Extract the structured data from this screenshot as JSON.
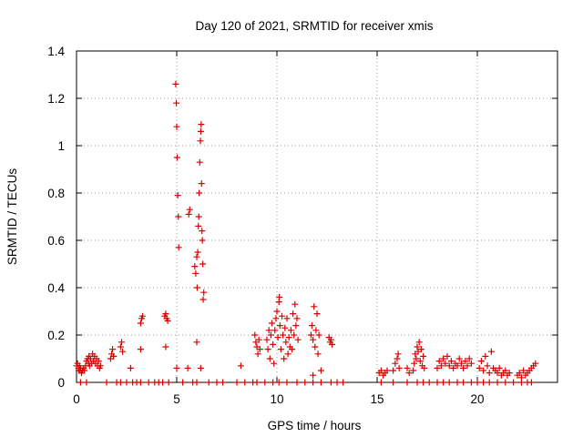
{
  "chart_data": {
    "type": "scatter",
    "title": "Day 120 of 2021, SRMTID for receiver xmis",
    "xlabel": "GPS time / hours",
    "ylabel": "SRMTID / TECUs",
    "xlim": [
      0,
      24
    ],
    "ylim": [
      0,
      1.4
    ],
    "xticks": [
      0,
      5,
      10,
      15,
      20
    ],
    "xtick_labels": [
      "0",
      "5",
      "10",
      "15",
      "20"
    ],
    "yticks": [
      0,
      0.2,
      0.4,
      0.6,
      0.8,
      1.0,
      1.2,
      1.4
    ],
    "ytick_labels": [
      "0",
      "0.2",
      "0.4",
      "0.6",
      "0.8",
      "1",
      "1.2",
      "1.4"
    ],
    "grid": true,
    "marker": "plus",
    "marker_color": "#dd0000",
    "series": [
      {
        "name": "SRMTID",
        "points": [
          [
            0.0,
            0.07
          ],
          [
            0.05,
            0.08
          ],
          [
            0.1,
            0.06
          ],
          [
            0.12,
            0.05
          ],
          [
            0.15,
            0.07
          ],
          [
            0.18,
            0.05
          ],
          [
            0.2,
            0.06
          ],
          [
            0.25,
            0.04
          ],
          [
            0.3,
            0.05
          ],
          [
            0.35,
            0.06
          ],
          [
            0.4,
            0.05
          ],
          [
            0.45,
            0.07
          ],
          [
            0.5,
            0.09
          ],
          [
            0.55,
            0.1
          ],
          [
            0.6,
            0.08
          ],
          [
            0.62,
            0.11
          ],
          [
            0.65,
            0.07
          ],
          [
            0.7,
            0.1
          ],
          [
            0.75,
            0.08
          ],
          [
            0.8,
            0.12
          ],
          [
            0.85,
            0.09
          ],
          [
            0.9,
            0.11
          ],
          [
            0.95,
            0.08
          ],
          [
            1.0,
            0.1
          ],
          [
            1.05,
            0.07
          ],
          [
            1.1,
            0.09
          ],
          [
            1.15,
            0.06
          ],
          [
            1.2,
            0.07
          ],
          [
            1.7,
            0.1
          ],
          [
            1.75,
            0.12
          ],
          [
            1.8,
            0.14
          ],
          [
            1.85,
            0.11
          ],
          [
            2.2,
            0.15
          ],
          [
            2.25,
            0.17
          ],
          [
            2.3,
            0.13
          ],
          [
            2.7,
            0.06
          ],
          [
            3.2,
            0.25
          ],
          [
            3.25,
            0.27
          ],
          [
            3.3,
            0.28
          ],
          [
            3.2,
            0.14
          ],
          [
            4.4,
            0.28
          ],
          [
            4.45,
            0.29
          ],
          [
            4.5,
            0.27
          ],
          [
            4.55,
            0.26
          ],
          [
            4.45,
            0.15
          ],
          [
            4.95,
            1.26
          ],
          [
            4.98,
            1.18
          ],
          [
            5.0,
            1.08
          ],
          [
            5.02,
            0.95
          ],
          [
            5.05,
            0.79
          ],
          [
            5.08,
            0.7
          ],
          [
            5.1,
            0.57
          ],
          [
            5.0,
            0.06
          ],
          [
            5.6,
            0.71
          ],
          [
            5.65,
            0.73
          ],
          [
            5.55,
            0.06
          ],
          [
            5.9,
            0.49
          ],
          [
            5.95,
            0.46
          ],
          [
            6.0,
            0.53
          ],
          [
            6.02,
            0.4
          ],
          [
            6.05,
            0.55
          ],
          [
            6.08,
            0.66
          ],
          [
            6.1,
            0.7
          ],
          [
            6.12,
            0.8
          ],
          [
            6.15,
            0.93
          ],
          [
            6.18,
            1.02
          ],
          [
            6.2,
            1.06
          ],
          [
            6.22,
            1.09
          ],
          [
            6.24,
            0.84
          ],
          [
            6.26,
            0.64
          ],
          [
            6.28,
            0.6
          ],
          [
            6.3,
            0.5
          ],
          [
            6.32,
            0.35
          ],
          [
            6.35,
            0.38
          ],
          [
            6.0,
            0.17
          ],
          [
            6.2,
            0.06
          ],
          [
            8.2,
            0.07
          ],
          [
            8.9,
            0.2
          ],
          [
            8.95,
            0.17
          ],
          [
            9.0,
            0.15
          ],
          [
            9.05,
            0.12
          ],
          [
            9.1,
            0.18
          ],
          [
            9.15,
            0.14
          ],
          [
            9.5,
            0.18
          ],
          [
            9.55,
            0.14
          ],
          [
            9.6,
            0.22
          ],
          [
            9.65,
            0.1
          ],
          [
            9.7,
            0.2
          ],
          [
            9.75,
            0.25
          ],
          [
            9.8,
            0.16
          ],
          [
            9.85,
            0.08
          ],
          [
            9.9,
            0.22
          ],
          [
            9.95,
            0.27
          ],
          [
            10.0,
            0.3
          ],
          [
            10.05,
            0.19
          ],
          [
            10.1,
            0.34
          ],
          [
            10.12,
            0.36
          ],
          [
            10.15,
            0.24
          ],
          [
            10.2,
            0.14
          ],
          [
            10.25,
            0.28
          ],
          [
            10.3,
            0.2
          ],
          [
            10.35,
            0.1
          ],
          [
            10.4,
            0.23
          ],
          [
            10.45,
            0.17
          ],
          [
            10.5,
            0.27
          ],
          [
            10.55,
            0.12
          ],
          [
            10.6,
            0.19
          ],
          [
            10.65,
            0.15
          ],
          [
            10.7,
            0.22
          ],
          [
            10.75,
            0.14
          ],
          [
            10.8,
            0.29
          ],
          [
            10.85,
            0.2
          ],
          [
            10.9,
            0.33
          ],
          [
            10.95,
            0.24
          ],
          [
            11.0,
            0.27
          ],
          [
            11.05,
            0.18
          ],
          [
            11.7,
            0.2
          ],
          [
            11.75,
            0.24
          ],
          [
            11.8,
            0.18
          ],
          [
            11.85,
            0.32
          ],
          [
            11.9,
            0.15
          ],
          [
            11.95,
            0.22
          ],
          [
            12.0,
            0.29
          ],
          [
            12.05,
            0.12
          ],
          [
            12.1,
            0.2
          ],
          [
            11.8,
            0.03
          ],
          [
            12.2,
            0.05
          ],
          [
            12.6,
            0.19
          ],
          [
            12.65,
            0.17
          ],
          [
            12.7,
            0.18
          ],
          [
            12.75,
            0.16
          ],
          [
            15.1,
            0.04
          ],
          [
            15.2,
            0.05
          ],
          [
            15.3,
            0.03
          ],
          [
            15.4,
            0.04
          ],
          [
            15.5,
            0.05
          ],
          [
            15.8,
            0.05
          ],
          [
            15.9,
            0.08
          ],
          [
            16.0,
            0.1
          ],
          [
            16.05,
            0.12
          ],
          [
            16.1,
            0.06
          ],
          [
            16.5,
            0.06
          ],
          [
            16.6,
            0.04
          ],
          [
            16.8,
            0.05
          ],
          [
            16.85,
            0.08
          ],
          [
            16.9,
            0.12
          ],
          [
            16.95,
            0.1
          ],
          [
            17.0,
            0.15
          ],
          [
            17.05,
            0.13
          ],
          [
            17.1,
            0.17
          ],
          [
            17.15,
            0.09
          ],
          [
            17.2,
            0.14
          ],
          [
            17.25,
            0.07
          ],
          [
            17.3,
            0.11
          ],
          [
            17.35,
            0.06
          ],
          [
            18.0,
            0.06
          ],
          [
            18.1,
            0.09
          ],
          [
            18.2,
            0.07
          ],
          [
            18.3,
            0.1
          ],
          [
            18.4,
            0.08
          ],
          [
            18.5,
            0.11
          ],
          [
            18.6,
            0.07
          ],
          [
            18.7,
            0.09
          ],
          [
            18.8,
            0.06
          ],
          [
            18.9,
            0.08
          ],
          [
            19.0,
            0.07
          ],
          [
            19.1,
            0.1
          ],
          [
            19.2,
            0.08
          ],
          [
            19.3,
            0.06
          ],
          [
            19.4,
            0.09
          ],
          [
            19.5,
            0.07
          ],
          [
            19.6,
            0.1
          ],
          [
            19.7,
            0.08
          ],
          [
            20.1,
            0.06
          ],
          [
            20.2,
            0.09
          ],
          [
            20.3,
            0.05
          ],
          [
            20.4,
            0.11
          ],
          [
            20.5,
            0.07
          ],
          [
            20.6,
            0.04
          ],
          [
            20.7,
            0.13
          ],
          [
            20.8,
            0.06
          ],
          [
            20.9,
            0.05
          ],
          [
            21.0,
            0.04
          ],
          [
            21.1,
            0.06
          ],
          [
            21.2,
            0.03
          ],
          [
            21.3,
            0.04
          ],
          [
            21.4,
            0.05
          ],
          [
            21.5,
            0.03
          ],
          [
            21.6,
            0.04
          ],
          [
            22.0,
            0.03
          ],
          [
            22.1,
            0.04
          ],
          [
            22.2,
            0.02
          ],
          [
            22.3,
            0.05
          ],
          [
            22.4,
            0.03
          ],
          [
            22.5,
            0.04
          ],
          [
            22.6,
            0.05
          ],
          [
            22.7,
            0.06
          ],
          [
            22.8,
            0.07
          ],
          [
            22.9,
            0.08
          ],
          [
            0.2,
            0
          ],
          [
            0.5,
            0
          ],
          [
            1.5,
            0
          ],
          [
            2.0,
            0
          ],
          [
            2.2,
            0
          ],
          [
            2.5,
            0
          ],
          [
            2.8,
            0
          ],
          [
            3.0,
            0
          ],
          [
            3.2,
            0
          ],
          [
            3.6,
            0
          ],
          [
            3.9,
            0
          ],
          [
            4.1,
            0
          ],
          [
            4.3,
            0
          ],
          [
            4.6,
            0
          ],
          [
            5.3,
            0
          ],
          [
            5.8,
            0
          ],
          [
            6.0,
            0
          ],
          [
            6.6,
            0
          ],
          [
            7.0,
            0
          ],
          [
            7.3,
            0
          ],
          [
            8.0,
            0
          ],
          [
            8.4,
            0
          ],
          [
            8.8,
            0
          ],
          [
            9.0,
            0
          ],
          [
            9.4,
            0
          ],
          [
            9.8,
            0
          ],
          [
            10.1,
            0
          ],
          [
            10.5,
            0
          ],
          [
            11.0,
            0
          ],
          [
            11.4,
            0
          ],
          [
            11.8,
            0
          ],
          [
            12.2,
            0
          ],
          [
            12.7,
            0
          ],
          [
            13.0,
            0
          ],
          [
            13.3,
            0
          ],
          [
            15.2,
            0
          ],
          [
            15.8,
            0
          ],
          [
            16.5,
            0
          ],
          [
            17.0,
            0
          ],
          [
            17.3,
            0
          ],
          [
            17.6,
            0
          ],
          [
            18.0,
            0
          ],
          [
            18.3,
            0
          ],
          [
            18.6,
            0
          ],
          [
            19.0,
            0
          ],
          [
            19.3,
            0
          ],
          [
            19.7,
            0
          ],
          [
            20.0,
            0
          ],
          [
            20.3,
            0
          ],
          [
            20.6,
            0
          ],
          [
            21.0,
            0
          ],
          [
            21.4,
            0
          ],
          [
            21.8,
            0
          ],
          [
            22.2,
            0
          ],
          [
            22.5,
            0
          ],
          [
            22.7,
            0
          ]
        ]
      }
    ]
  }
}
